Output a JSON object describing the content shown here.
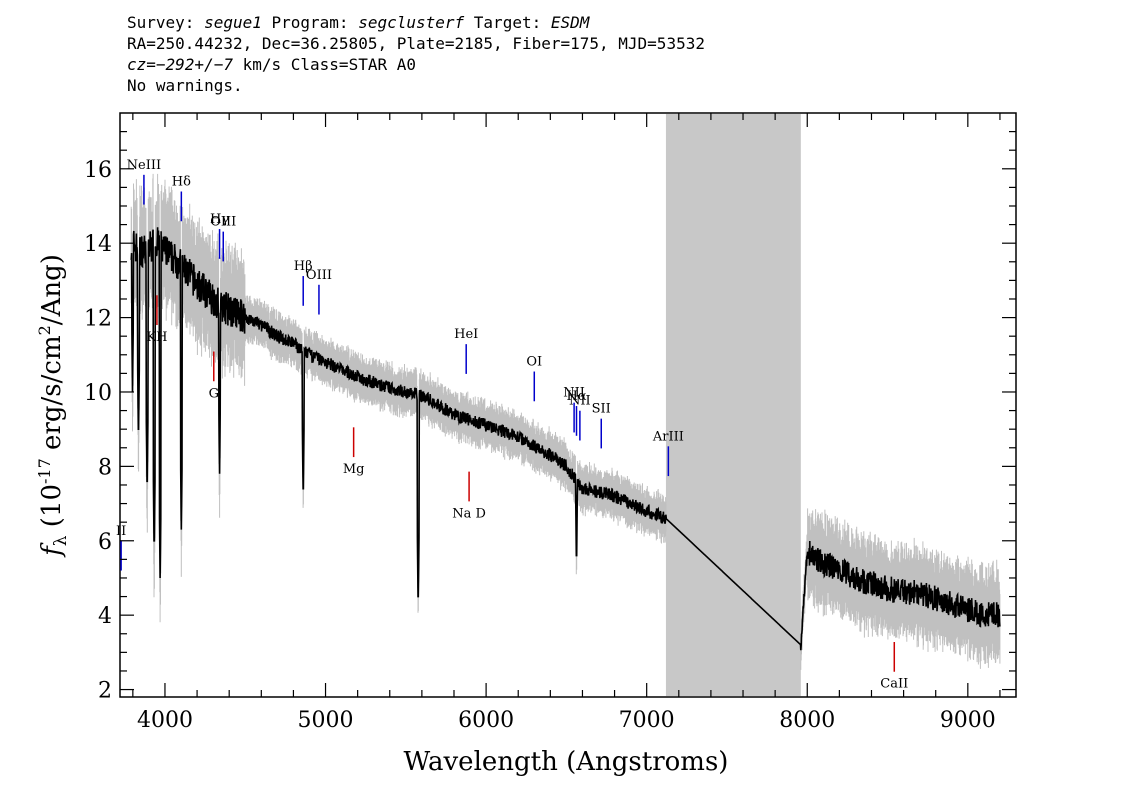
{
  "header": {
    "line1": {
      "survey_label": "Survey: ",
      "survey": "segue1",
      "program_label": " Program: ",
      "program": "segclusterf",
      "target_label": " Target: ",
      "target": "ESDM"
    },
    "line2": "RA=250.44232, Dec=36.25805, Plate=2185, Fiber=175, MJD=53532",
    "line3": {
      "cz": "cz=−292+/−7",
      "rest": " km/s Class=STAR A0"
    },
    "line4": "No warnings."
  },
  "chart_data": {
    "type": "line",
    "xlabel": "Wavelength (Angstroms)",
    "ylabel": "f_λ (10^-17 erg/s/cm^2/Ang)",
    "xlim": [
      3720,
      9300
    ],
    "ylim": [
      1.8,
      17.5
    ],
    "xticks": [
      4000,
      5000,
      6000,
      7000,
      8000,
      9000
    ],
    "yticks": [
      2,
      4,
      6,
      8,
      10,
      12,
      14,
      16
    ],
    "masked_region": [
      7120,
      7960
    ],
    "spectrum_continuum": [
      [
        3790,
        14.0
      ],
      [
        3850,
        13.8
      ],
      [
        3900,
        13.9
      ],
      [
        3950,
        14.0
      ],
      [
        4000,
        13.8
      ],
      [
        4050,
        13.6
      ],
      [
        4100,
        13.4
      ],
      [
        4200,
        12.9
      ],
      [
        4300,
        12.5
      ],
      [
        4400,
        12.2
      ],
      [
        4500,
        12.0
      ],
      [
        4600,
        11.8
      ],
      [
        4700,
        11.5
      ],
      [
        4800,
        11.3
      ],
      [
        4900,
        11.0
      ],
      [
        5000,
        10.8
      ],
      [
        5200,
        10.4
      ],
      [
        5400,
        10.1
      ],
      [
        5600,
        9.9
      ],
      [
        5800,
        9.4
      ],
      [
        6000,
        9.1
      ],
      [
        6200,
        8.8
      ],
      [
        6400,
        8.3
      ],
      [
        6500,
        8.0
      ],
      [
        6600,
        7.4
      ],
      [
        6800,
        7.2
      ],
      [
        7000,
        6.8
      ],
      [
        7120,
        6.6
      ],
      [
        7960,
        3.2
      ],
      [
        8000,
        5.7
      ],
      [
        8100,
        5.4
      ],
      [
        8300,
        5.0
      ],
      [
        8500,
        4.7
      ],
      [
        8700,
        4.6
      ],
      [
        8900,
        4.3
      ],
      [
        9100,
        4.0
      ],
      [
        9200,
        4.0
      ]
    ],
    "absorption_lines": [
      [
        3798,
        10.0
      ],
      [
        3835,
        8.6
      ],
      [
        3889,
        7.2
      ],
      [
        3933,
        5.6
      ],
      [
        3970,
        5.0
      ],
      [
        4102,
        6.3
      ],
      [
        4340,
        7.8
      ],
      [
        4861,
        7.0
      ],
      [
        5577,
        4.1
      ],
      [
        6563,
        5.2
      ]
    ],
    "emission_lines": [
      {
        "label": "II",
        "x": 3727,
        "color": "#0000cc"
      },
      {
        "label": "NeIII",
        "x": 3869,
        "color": "#0000cc"
      },
      {
        "label": "Hδ",
        "x": 4102,
        "color": "#0000cc"
      },
      {
        "label": "Hγ",
        "x": 4340,
        "color": "#0000cc"
      },
      {
        "label": "OIII",
        "x": 4363,
        "color": "#0000cc"
      },
      {
        "label": "Hβ",
        "x": 4861,
        "color": "#0000cc"
      },
      {
        "label": "OIII",
        "x": 4959,
        "color": "#0000cc"
      },
      {
        "label": "HeI",
        "x": 5876,
        "color": "#0000cc"
      },
      {
        "label": "OI",
        "x": 6300,
        "color": "#0000cc"
      },
      {
        "label": "NII",
        "x": 6548,
        "color": "#0000cc"
      },
      {
        "label": "Hα",
        "x": 6563,
        "color": "#0000cc"
      },
      {
        "label": "NII",
        "x": 6584,
        "color": "#0000cc"
      },
      {
        "label": "SII",
        "x": 6717,
        "color": "#0000cc"
      },
      {
        "label": "ArIII",
        "x": 7135,
        "color": "#0000cc"
      }
    ],
    "absorption_markers": [
      {
        "label": "KH",
        "x": 3950,
        "color": "#cc0000"
      },
      {
        "label": "G",
        "x": 4304,
        "color": "#cc0000"
      },
      {
        "label": "Mg",
        "x": 5175,
        "color": "#cc0000"
      },
      {
        "label": "Na D",
        "x": 5894,
        "color": "#cc0000"
      },
      {
        "label": "CaII",
        "x": 8542,
        "color": "#cc0000"
      }
    ],
    "colors": {
      "spectrum": "#000000",
      "error": "#c0c0c0",
      "mask": "#c8c8c8"
    }
  }
}
